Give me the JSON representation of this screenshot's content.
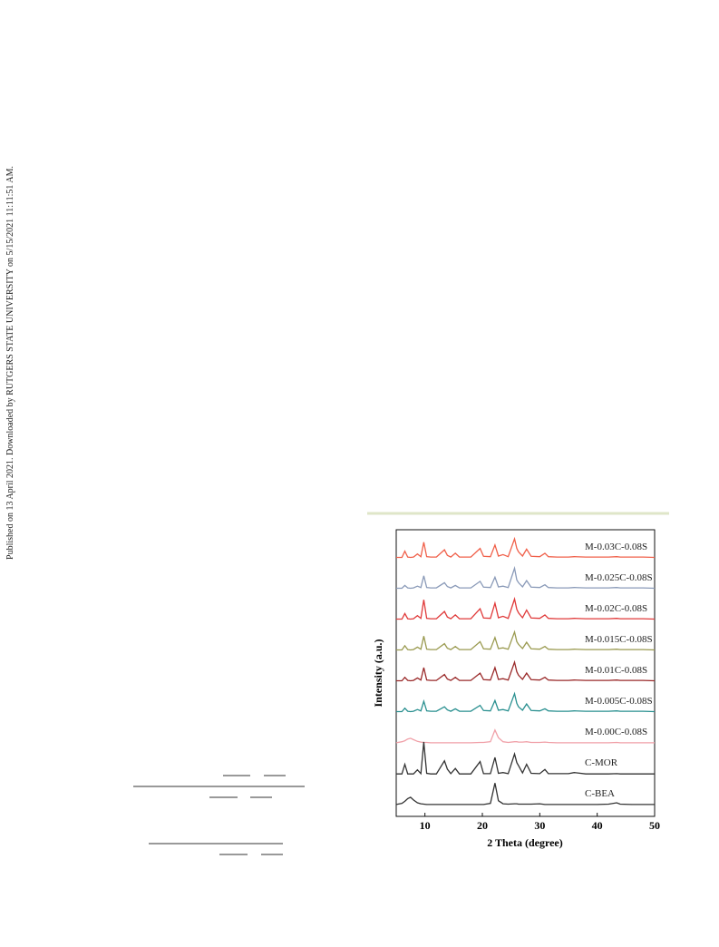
{
  "side_note": "Published on 13 April 2021. Downloaded by RUTGERS STATE UNIVERSITY on 5/15/2021 11:11:51 AM.",
  "chart_data": {
    "type": "line",
    "x_label": "2 Theta (degree)",
    "y_label": "Intensity (a.u.)",
    "x": [
      5,
      6,
      6.5,
      7,
      7.5,
      8,
      8.7,
      9.3,
      9.8,
      10.3,
      11,
      12,
      13.4,
      13.9,
      14.5,
      15.3,
      16,
      18,
      19.6,
      20.2,
      21.4,
      22.2,
      22.8,
      23.6,
      24.5,
      25.6,
      26,
      26.3,
      27,
      27.7,
      28.5,
      30,
      30.9,
      31.5,
      33,
      35,
      36,
      38,
      40,
      42,
      43.4,
      44,
      46,
      48,
      50
    ],
    "xlim": [
      5,
      50
    ],
    "xticks": [
      10,
      20,
      30,
      40,
      50
    ],
    "series": [
      {
        "name": "M-0.03C-0.08S",
        "color": "#f0604a",
        "values": [
          4,
          4,
          22,
          5,
          4,
          5,
          14,
          6,
          48,
          6,
          5,
          5,
          26,
          10,
          5,
          16,
          5,
          5,
          30,
          7,
          6,
          40,
          8,
          12,
          6,
          58,
          30,
          20,
          8,
          28,
          7,
          6,
          16,
          6,
          5,
          5,
          6,
          5,
          5,
          5,
          6,
          5,
          5,
          5,
          4
        ]
      },
      {
        "name": "M-0.025C-0.08S",
        "color": "#8a9ab8",
        "values": [
          4,
          4,
          12,
          5,
          4,
          5,
          10,
          6,
          40,
          6,
          5,
          5,
          20,
          9,
          5,
          12,
          5,
          5,
          24,
          7,
          6,
          36,
          8,
          10,
          6,
          62,
          28,
          20,
          8,
          26,
          7,
          6,
          14,
          6,
          5,
          5,
          6,
          5,
          5,
          5,
          6,
          5,
          5,
          5,
          4
        ]
      },
      {
        "name": "M-0.02C-0.08S",
        "color": "#e03a3a",
        "values": [
          4,
          4,
          20,
          5,
          4,
          5,
          14,
          6,
          60,
          6,
          5,
          5,
          26,
          10,
          5,
          16,
          5,
          5,
          34,
          7,
          6,
          50,
          8,
          12,
          6,
          62,
          32,
          22,
          8,
          30,
          7,
          6,
          16,
          6,
          5,
          5,
          6,
          5,
          5,
          5,
          6,
          5,
          5,
          5,
          4
        ]
      },
      {
        "name": "M-0.015C-0.08S",
        "color": "#9a9a50",
        "values": [
          4,
          4,
          16,
          5,
          4,
          5,
          12,
          6,
          44,
          6,
          5,
          5,
          22,
          9,
          5,
          14,
          5,
          5,
          28,
          7,
          6,
          40,
          8,
          10,
          6,
          56,
          28,
          20,
          8,
          26,
          7,
          6,
          14,
          6,
          5,
          5,
          6,
          5,
          5,
          5,
          6,
          5,
          5,
          5,
          4
        ]
      },
      {
        "name": "M-0.01C-0.08S",
        "color": "#9a2a2a",
        "values": [
          4,
          4,
          14,
          5,
          4,
          5,
          12,
          6,
          42,
          6,
          5,
          5,
          22,
          9,
          5,
          14,
          5,
          5,
          26,
          7,
          6,
          42,
          8,
          10,
          6,
          58,
          30,
          20,
          8,
          26,
          7,
          6,
          14,
          6,
          5,
          5,
          6,
          5,
          5,
          5,
          6,
          5,
          5,
          5,
          4
        ]
      },
      {
        "name": "M-0.005C-0.08S",
        "color": "#2a9090",
        "values": [
          4,
          4,
          14,
          5,
          4,
          5,
          10,
          6,
          34,
          6,
          5,
          5,
          18,
          9,
          5,
          12,
          5,
          5,
          22,
          7,
          6,
          36,
          8,
          10,
          6,
          56,
          28,
          18,
          8,
          26,
          7,
          6,
          12,
          6,
          5,
          5,
          6,
          5,
          5,
          5,
          6,
          5,
          5,
          5,
          4
        ]
      },
      {
        "name": "M-0.00C-0.08S",
        "color": "#f0a0a8",
        "values": [
          3,
          6,
          9,
          14,
          16,
          12,
          7,
          5,
          4,
          4,
          3,
          3,
          3,
          3,
          3,
          3,
          3,
          3,
          4,
          4,
          6,
          40,
          18,
          6,
          4,
          6,
          6,
          5,
          5,
          6,
          4,
          4,
          5,
          4,
          3,
          3,
          3,
          3,
          3,
          3,
          4,
          3,
          3,
          3,
          3
        ]
      },
      {
        "name": "C-MOR",
        "color": "#333333",
        "values": [
          2,
          2,
          30,
          2,
          2,
          2,
          14,
          3,
          95,
          4,
          2,
          2,
          40,
          16,
          3,
          18,
          2,
          2,
          38,
          3,
          3,
          50,
          4,
          6,
          3,
          60,
          35,
          26,
          5,
          30,
          4,
          3,
          15,
          3,
          3,
          3,
          6,
          2,
          2,
          2,
          3,
          2,
          2,
          2,
          2
        ]
      },
      {
        "name": "C-BEA",
        "color": "#333333",
        "values": [
          3,
          6,
          12,
          20,
          24,
          16,
          8,
          5,
          4,
          3,
          3,
          3,
          3,
          3,
          3,
          3,
          3,
          3,
          3,
          3,
          6,
          65,
          14,
          5,
          4,
          5,
          5,
          4,
          4,
          4,
          4,
          5,
          3,
          3,
          3,
          3,
          3,
          3,
          3,
          4,
          8,
          4,
          3,
          3,
          3
        ]
      }
    ]
  }
}
